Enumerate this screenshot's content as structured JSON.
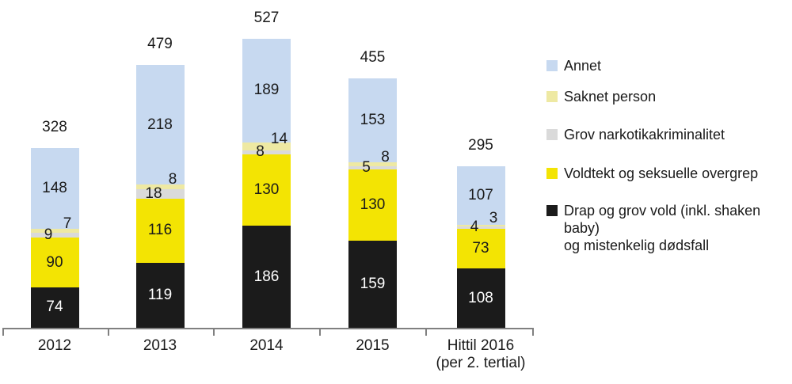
{
  "chart_data": {
    "type": "bar",
    "stacked": true,
    "title": "",
    "xlabel": "",
    "ylabel": "",
    "grid": false,
    "legend_position": "right",
    "categories": [
      "2012",
      "2013",
      "2014",
      "2015",
      "Hittil 2016\n(per 2. tertial)"
    ],
    "totals": [
      328,
      479,
      527,
      455,
      295
    ],
    "series": [
      {
        "name": "Drap og grov vold (inkl. shaken baby) og mistenkelig dødsfall",
        "color": "#1b1b1b",
        "values": [
          74,
          119,
          186,
          159,
          108
        ]
      },
      {
        "name": "Voldtekt og seksuelle overgrep",
        "color": "#f3e403",
        "values": [
          90,
          116,
          130,
          130,
          73
        ]
      },
      {
        "name": "Grov narkotikakriminalitet",
        "color": "#dadada",
        "values": [
          9,
          18,
          8,
          5,
          4
        ]
      },
      {
        "name": "Saknet person",
        "color": "#eee9a3",
        "values": [
          7,
          8,
          14,
          8,
          3
        ]
      },
      {
        "name": "Annet",
        "color": "#c7d9f0",
        "values": [
          148,
          218,
          189,
          153,
          107
        ]
      }
    ],
    "legend": [
      {
        "label": "Annet",
        "color": "#c7d9f0"
      },
      {
        "label": "Saknet person",
        "color": "#eee9a3"
      },
      {
        "label": "Grov narkotikakriminalitet",
        "color": "#dadada"
      },
      {
        "label": "Voldtekt og seksuelle overgrep",
        "color": "#f3e403"
      },
      {
        "label": "Drap og grov vold (inkl. shaken baby)\nog mistenkelig dødsfall",
        "color": "#1b1b1b"
      }
    ],
    "value_label_color": "#1a1a1a",
    "value_label_color_on_dark": "#ffffff",
    "axis_color": "#808080"
  }
}
